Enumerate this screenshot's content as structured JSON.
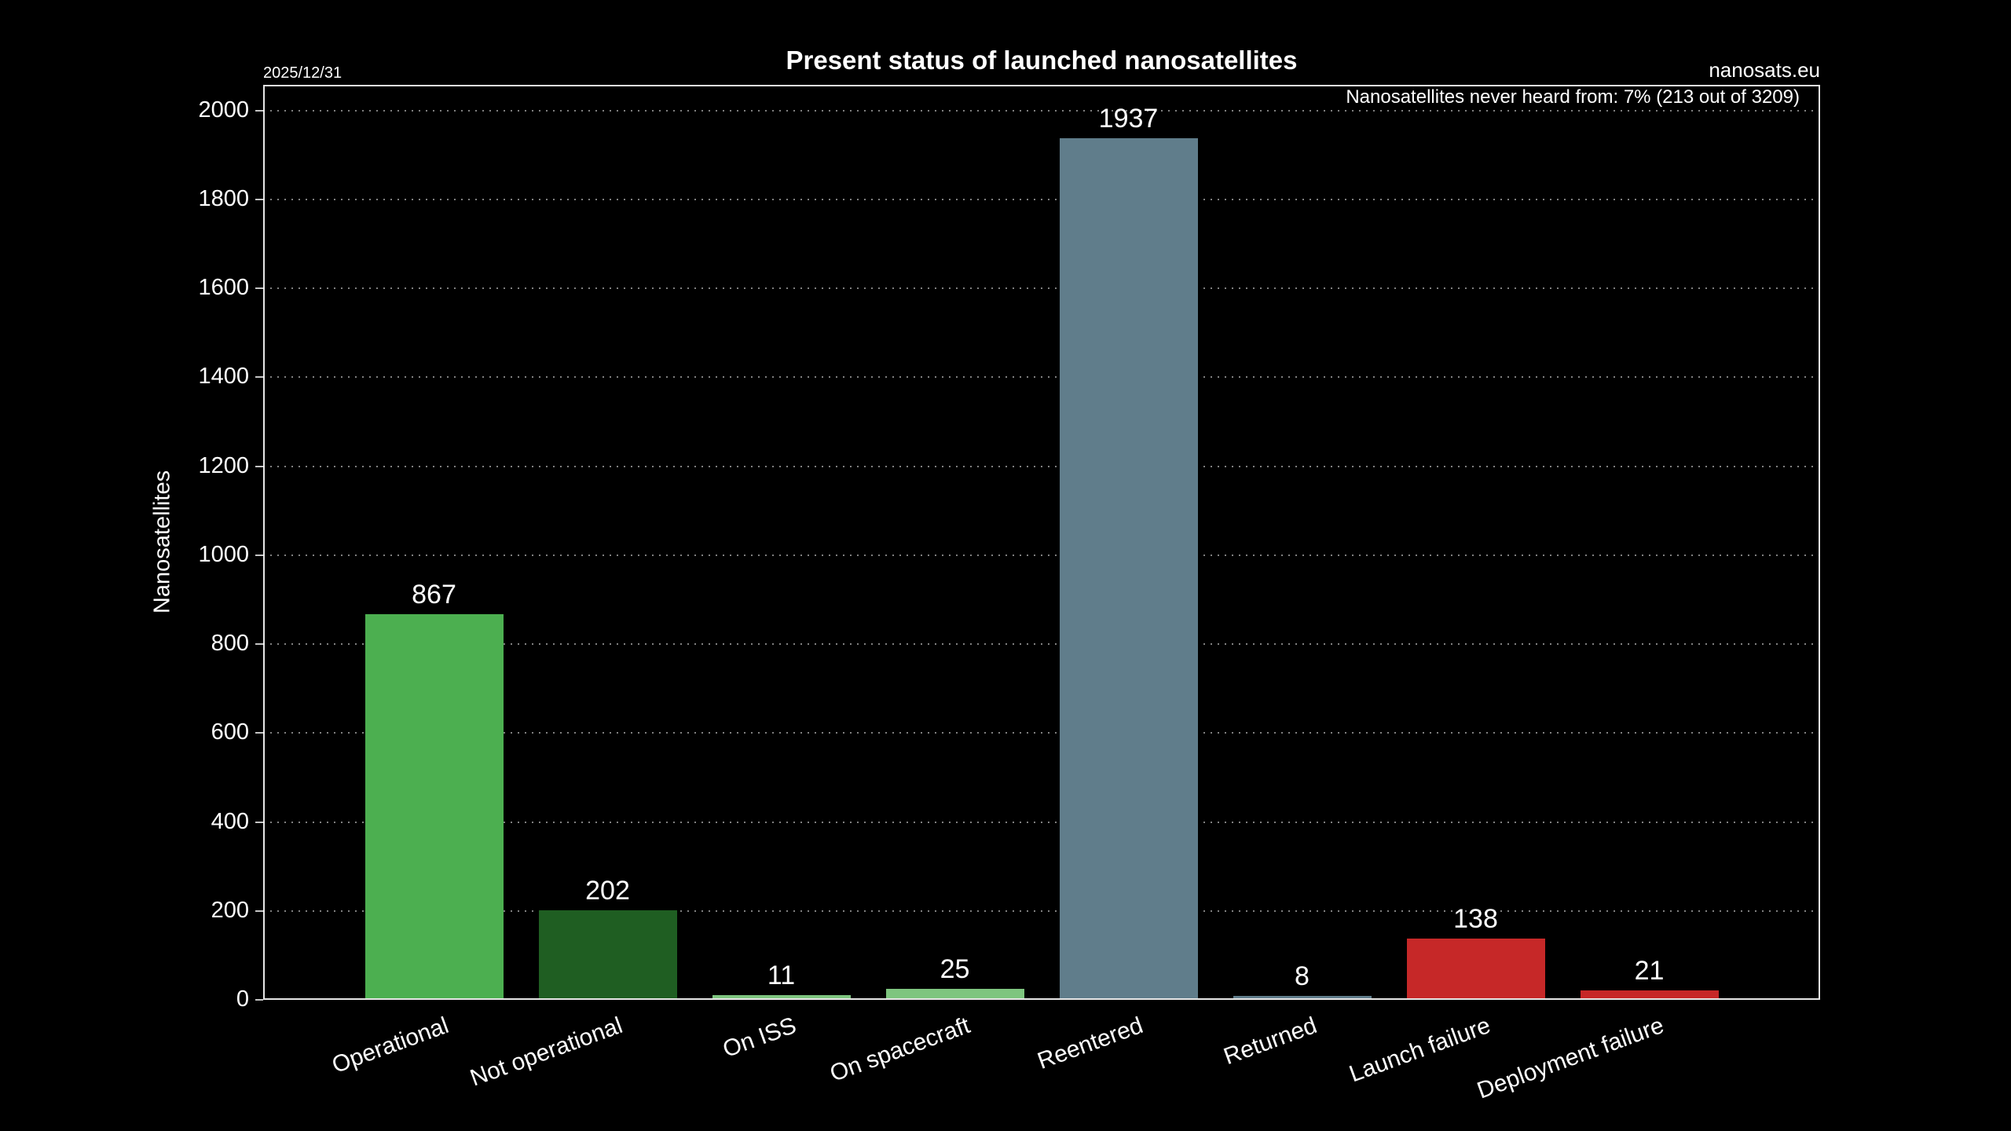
{
  "header": {
    "date": "2025/12/31",
    "title": "Present status of launched nanosatellites",
    "site": "nanosats.eu"
  },
  "annotation": "Nanosatellites never heard from: 7% (213 out of 3209)",
  "chart_data": {
    "type": "bar",
    "title": "Present status of launched nanosatellites",
    "categories": [
      "Operational",
      "Not operational",
      "On ISS",
      "On spacecraft",
      "Reentered",
      "Returned",
      "Launch failure",
      "Deployment failure"
    ],
    "values": [
      867,
      202,
      11,
      25,
      1937,
      8,
      138,
      21
    ],
    "bar_colors": [
      "#4caf50",
      "#1f5e22",
      "#7ec57f",
      "#7ec57f",
      "#607d8b",
      "#607d8b",
      "#c62828",
      "#c62828"
    ],
    "xlabel": "",
    "ylabel": "Nanosatellites",
    "ylim": [
      0,
      2058
    ],
    "yticks": [
      0,
      200,
      400,
      600,
      800,
      1000,
      1200,
      1400,
      1600,
      1800,
      2000
    ],
    "grid": "dotted-horizontal",
    "legend": "none",
    "background": "#000000",
    "text_color": "#ffffff",
    "xlabel_rotation_deg": -20
  }
}
